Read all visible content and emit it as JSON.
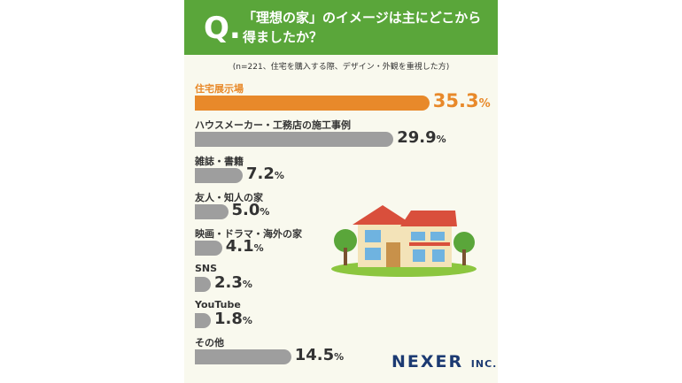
{
  "question": {
    "mark": "Q.",
    "text_line1": "「理想の家」のイメージは主にどこから",
    "text_line2": "得ましたか？"
  },
  "note": "(n=221、住宅を購入する際、デザイン・外観を重視した方)",
  "logo": {
    "name": "NEXER",
    "suffix": "INC."
  },
  "colors": {
    "highlight": "#e8892a",
    "bar": "#9e9e9e",
    "header": "#5aa63a",
    "logo": "#1c3a72"
  },
  "chart_data": {
    "type": "bar",
    "orientation": "horizontal",
    "unit": "%",
    "categories": [
      "住宅展示場",
      "ハウスメーカー・工務店の施工事例",
      "雑誌・書籍",
      "友人・知人の家",
      "映画・ドラマ・海外の家",
      "SNS",
      "YouTube",
      "その他"
    ],
    "values": [
      35.3,
      29.9,
      7.2,
      5.0,
      4.1,
      2.3,
      1.8,
      14.5
    ],
    "value_labels": [
      "35.3",
      "29.9",
      "7.2",
      "5.0",
      "4.1",
      "2.3",
      "1.8",
      "14.5"
    ],
    "highlight_index": 0
  }
}
